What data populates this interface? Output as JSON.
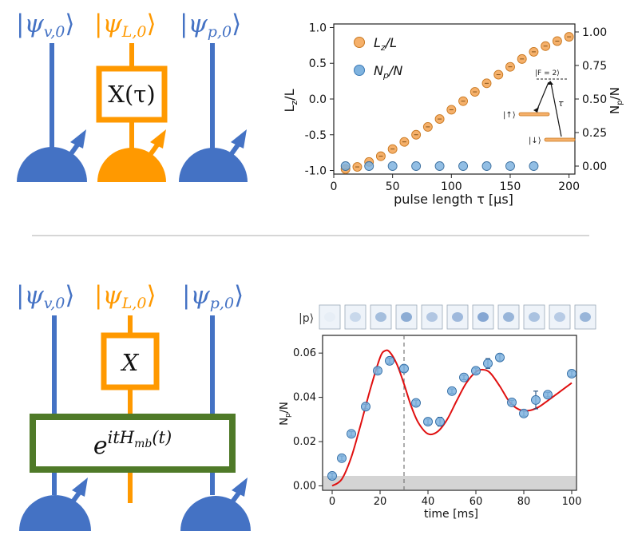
{
  "colors": {
    "blue": "#4472c4",
    "orange": "#ff9900",
    "green": "#4f7a28",
    "marker_blue": "#7fb3df",
    "marker_orange": "#f5b06a",
    "fit_red": "#e01010",
    "band_gray": "#d4d4d4",
    "divider": "#c8c8c8"
  },
  "top_circuit": {
    "state_v": "|ψ",
    "state_v_sub": "v,0",
    "state_L": "|ψ",
    "state_L_sub": "L,0",
    "state_p": "|ψ",
    "state_p_sub": "p,0",
    "ket": "⟩",
    "gate_label": "X(τ)"
  },
  "bottom_circuit": {
    "state_v": "|ψ",
    "state_v_sub": "v,0",
    "state_L": "|ψ",
    "state_L_sub": "L,0",
    "state_p": "|ψ",
    "state_p_sub": "p,0",
    "ket": "⟩",
    "gate_label": "X",
    "evolution_base": "e",
    "evolution_exp": "itH",
    "evolution_exp_sub": "mb",
    "evolution_exp_tail": "(t)"
  },
  "chart_data": [
    {
      "type": "scatter",
      "xlabel": "pulse length τ [µs]",
      "ylabel_left": "Lz/L",
      "ylabel_right": "Np/N",
      "xlim": [
        0,
        205
      ],
      "ylim_left": [
        -1.05,
        1.05
      ],
      "ylim_right": [
        0.0,
        1.0
      ],
      "x_ticks": [
        0,
        50,
        100,
        150,
        200
      ],
      "y_ticks_left": [
        "-1.0",
        "-0.5",
        "0.0",
        "0.5",
        "1.0"
      ],
      "y_ticks_right": [
        "0.00",
        "0.25",
        "0.50",
        "0.75",
        "1.00"
      ],
      "legend_placement": "top-left",
      "series": [
        {
          "name": "Lz/L",
          "color": "#f5b06a",
          "x": [
            10,
            20,
            30,
            40,
            50,
            60,
            70,
            80,
            90,
            100,
            110,
            120,
            130,
            140,
            150,
            160,
            170,
            180,
            190,
            200
          ],
          "y": [
            -0.98,
            -0.95,
            -0.88,
            -0.8,
            -0.7,
            -0.6,
            -0.5,
            -0.39,
            -0.28,
            -0.15,
            -0.03,
            0.1,
            0.22,
            0.34,
            0.45,
            0.56,
            0.66,
            0.74,
            0.81,
            0.87
          ]
        },
        {
          "name": "Np/N",
          "color": "#7fb3df",
          "x": [
            10,
            30,
            50,
            70,
            90,
            110,
            130,
            150,
            170
          ],
          "y": [
            0.0,
            0.0,
            0.0,
            0.0,
            0.0,
            0.0,
            0.0,
            0.0,
            0.0
          ]
        }
      ],
      "inset": {
        "level_F2": "|F = 2⟩",
        "level_up": "|↑⟩",
        "level_down": "|↓⟩",
        "arrow_label": "τ"
      }
    },
    {
      "type": "scatter",
      "xlabel": "time [ms]",
      "ylabel": "Np/N",
      "xlim": [
        -4,
        102
      ],
      "ylim": [
        -0.002,
        0.068
      ],
      "x_ticks": [
        0,
        20,
        40,
        60,
        80,
        100
      ],
      "y_ticks": [
        "0.00",
        "0.02",
        "0.04",
        "0.06"
      ],
      "image_strip_label": "|p⟩",
      "image_strip_count": 11,
      "vline_x": 30,
      "band_ymax": 0.0045,
      "series": [
        {
          "name": "data",
          "color": "#7fb3df",
          "x": [
            0,
            4,
            8,
            14,
            19,
            24,
            30,
            35,
            40,
            45,
            50,
            55,
            60,
            65,
            70,
            75,
            80,
            85,
            90,
            100
          ],
          "y": [
            0.0045,
            0.0125,
            0.0235,
            0.0358,
            0.052,
            0.0565,
            0.053,
            0.0375,
            0.029,
            0.029,
            0.0428,
            0.049,
            0.052,
            0.0553,
            0.058,
            0.0377,
            0.0327,
            0.0388,
            0.0412,
            0.0507
          ],
          "err": [
            0.0012,
            0.001,
            0.001,
            0.001,
            0.0012,
            0.0012,
            0.0015,
            0.0012,
            0.0012,
            0.002,
            0.001,
            0.001,
            0.0012,
            0.0022,
            0.0015,
            0.001,
            0.0012,
            0.004,
            0.001,
            0.0012
          ]
        },
        {
          "name": "fit",
          "color": "#e01010",
          "x": [
            0,
            4,
            8,
            12,
            16,
            20,
            22,
            24,
            27,
            30,
            33,
            36,
            40,
            44,
            48,
            52,
            56,
            60,
            63,
            66,
            70,
            74,
            78,
            82,
            86,
            90,
            95,
            100
          ],
          "y": [
            0.0,
            0.003,
            0.013,
            0.028,
            0.044,
            0.058,
            0.061,
            0.0605,
            0.055,
            0.046,
            0.036,
            0.0285,
            0.0235,
            0.0245,
            0.03,
            0.0385,
            0.0465,
            0.0515,
            0.0525,
            0.051,
            0.045,
            0.038,
            0.0345,
            0.034,
            0.0355,
            0.0385,
            0.0425,
            0.0465
          ]
        }
      ]
    }
  ]
}
